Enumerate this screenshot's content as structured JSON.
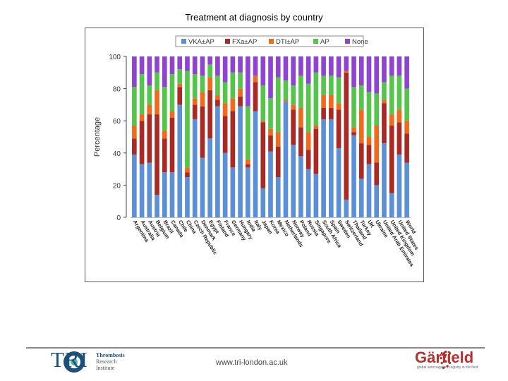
{
  "slide": {
    "title": "Treatment at diagnosis by country"
  },
  "footer": {
    "tri_logo_text": "TRI",
    "tri_sub_line1": "Thrombosis",
    "tri_sub_line2": "Research",
    "tri_sub_line3": "Institute",
    "url": "www.tri-london.ac.uk",
    "garfield_name": "Gärfield",
    "garfield_tagline": "global anticoagulant registry in the field"
  },
  "colors": {
    "VKA±AP": "#5b8fd6",
    "FXa±AP": "#a92a25",
    "DTI±AP": "#ef6a1b",
    "AP": "#55c44b",
    "None": "#8e44d0"
  },
  "chart_data": {
    "type": "bar",
    "stacked": true,
    "title": "",
    "xlabel": "",
    "ylabel": "Percentage",
    "ylim": [
      0,
      100
    ],
    "yticks": [
      0,
      20,
      40,
      60,
      80,
      100
    ],
    "legend_position": "top",
    "categories": [
      "Argentina",
      "Australia",
      "Austria",
      "Belgium",
      "Brazil",
      "Canada",
      "Chile",
      "China",
      "Czech Republic",
      "Denmark",
      "Egypt",
      "Finland",
      "France",
      "Germany",
      "Hungary",
      "India",
      "Italy",
      "Japan",
      "Korea",
      "Mexico",
      "Netherlands",
      "Norway",
      "Poland",
      "Russia",
      "Singapore",
      "South Africa",
      "Spain",
      "Sweden",
      "Switzerland",
      "Thailand",
      "Turkey",
      "UK",
      "Ukraine",
      "United Arab Emirates",
      "United Kingdom",
      "United States",
      "World"
    ],
    "series": [
      {
        "name": "VKA±AP",
        "values": [
          39,
          33,
          34,
          14,
          28,
          28,
          70,
          25,
          61,
          37,
          49,
          69,
          40,
          31,
          69,
          31,
          66,
          18,
          41,
          25,
          72,
          45,
          38,
          30,
          27,
          61,
          61,
          43,
          11,
          51,
          24,
          33,
          20,
          46,
          15,
          39,
          34
        ]
      },
      {
        "name": "FXa±AP",
        "values": [
          10,
          27,
          30,
          50,
          21,
          34,
          11,
          3,
          9,
          32,
          30,
          4,
          23,
          35,
          6,
          2,
          18,
          41,
          10,
          19,
          0,
          22,
          18,
          12,
          28,
          7,
          7,
          24,
          79,
          2,
          22,
          12,
          14,
          25,
          42,
          20,
          18
        ]
      },
      {
        "name": "DTI±AP",
        "values": [
          8,
          4,
          6,
          15,
          5,
          4,
          2,
          3,
          4,
          9,
          8,
          3,
          8,
          8,
          5,
          3,
          4,
          1,
          4,
          9,
          1,
          3,
          12,
          11,
          2,
          8,
          8,
          4,
          1,
          3,
          21,
          5,
          23,
          2,
          7,
          8,
          8
        ]
      },
      {
        "name": "AP",
        "values": [
          24,
          25,
          12,
          11,
          27,
          23,
          9,
          60,
          15,
          10,
          8,
          12,
          13,
          16,
          10,
          33,
          0,
          22,
          19,
          34,
          12,
          12,
          20,
          30,
          33,
          12,
          12,
          16,
          0,
          25,
          15,
          28,
          20,
          11,
          24,
          21,
          20
        ]
      },
      {
        "name": "None",
        "values": [
          19,
          11,
          18,
          10,
          19,
          11,
          8,
          9,
          11,
          12,
          5,
          12,
          16,
          10,
          10,
          31,
          12,
          18,
          26,
          13,
          15,
          18,
          12,
          17,
          10,
          12,
          12,
          13,
          9,
          19,
          18,
          22,
          23,
          16,
          12,
          12,
          20
        ]
      }
    ]
  }
}
